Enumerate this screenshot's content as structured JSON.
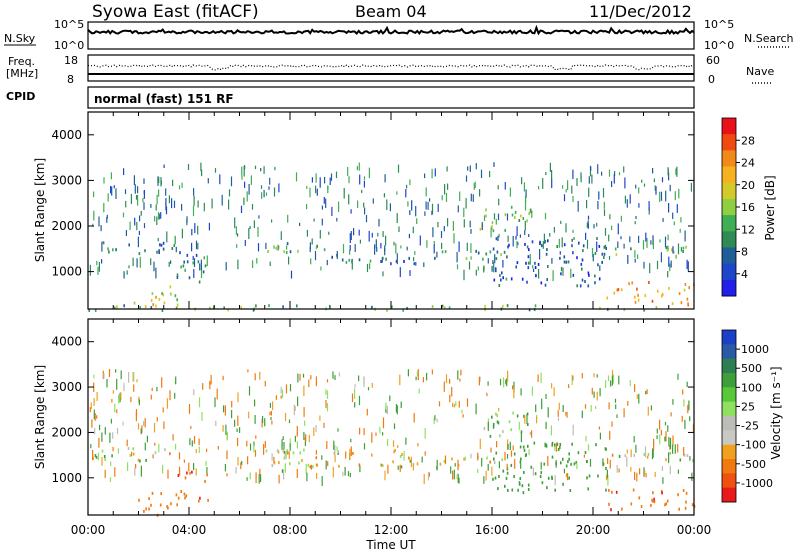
{
  "header": {
    "title": "Syowa East (fitACF)",
    "beam": "Beam 04",
    "date": "11/Dec/2012"
  },
  "summary_panels": {
    "nsky_label": "N.Sky",
    "nsky_ticks": [
      "10^5",
      "10^0"
    ],
    "nsearch_label": "N.Search",
    "nsearch_ticks": [
      "10^5",
      "10^0"
    ],
    "freq_label": "Freq.",
    "freq_unit": "[MHz]",
    "freq_ticks": [
      "18",
      "8"
    ],
    "nave_label": "Nave",
    "nave_ticks": [
      "60",
      "0"
    ],
    "cpid_label": "CPID",
    "cpid_value": "normal (fast) 151 RF"
  },
  "chart_data": [
    {
      "type": "heatmap",
      "name": "power",
      "ylabel": "Slant Range [km]",
      "xlabel": "",
      "x_range_hours": [
        0,
        24
      ],
      "ylim": [
        180,
        4500
      ],
      "y_ticks": [
        1000,
        2000,
        3000,
        4000
      ],
      "x_ticks": [
        "00:00",
        "04:00",
        "08:00",
        "12:00",
        "16:00",
        "20:00",
        "00:00"
      ],
      "colorbar": {
        "label": "Power [dB]",
        "ticks": [
          "28",
          "24",
          "20",
          "16",
          "12",
          "8",
          "4"
        ],
        "colors": [
          "#e8121b",
          "#f04a12",
          "#f28a1a",
          "#f5b21e",
          "#d3c92a",
          "#8fcf42",
          "#3fae55",
          "#2f8a55",
          "#205e9a",
          "#1d47c8",
          "#2020e8"
        ]
      },
      "echo_regions": [
        {
          "t0": 0.0,
          "t1": 3.4,
          "r0": 1400,
          "r1": 1700,
          "level": 8
        },
        {
          "t0": 1.8,
          "t1": 3.6,
          "r0": 200,
          "r1": 700,
          "level": 20
        },
        {
          "t0": 3.5,
          "t1": 4.8,
          "r0": 700,
          "r1": 1500,
          "level": 8
        },
        {
          "t0": 6.7,
          "t1": 10.0,
          "r0": 1450,
          "r1": 1650,
          "level": 12
        },
        {
          "t0": 8.5,
          "t1": 13.0,
          "r0": 1200,
          "r1": 1400,
          "level": 8
        },
        {
          "t0": 13.0,
          "t1": 16.5,
          "r0": 1300,
          "r1": 1500,
          "level": 10
        },
        {
          "t0": 15.5,
          "t1": 17.5,
          "r0": 1900,
          "r1": 2500,
          "level": 16
        },
        {
          "t0": 16.0,
          "t1": 20.5,
          "r0": 700,
          "r1": 1800,
          "level": 6
        },
        {
          "t0": 20.5,
          "t1": 24.0,
          "r0": 300,
          "r1": 800,
          "level": 22
        },
        {
          "t0": 20.0,
          "t1": 24.0,
          "r0": 1400,
          "r1": 1600,
          "level": 12
        },
        {
          "t0": 0.0,
          "t1": 24.0,
          "r0": 180,
          "r1": 300,
          "level": 14
        }
      ]
    },
    {
      "type": "heatmap",
      "name": "velocity",
      "ylabel": "Slant Range [km]",
      "xlabel": "Time UT",
      "x_range_hours": [
        0,
        24
      ],
      "ylim": [
        180,
        4500
      ],
      "y_ticks": [
        1000,
        2000,
        3000,
        4000
      ],
      "x_ticks": [
        "00:00",
        "04:00",
        "08:00",
        "12:00",
        "16:00",
        "20:00",
        "00:00"
      ],
      "colorbar": {
        "label": "Velocity [m s⁻¹]",
        "ticks": [
          "1000",
          "500",
          "100",
          "25",
          "-25",
          "-100",
          "-500",
          "-1000"
        ],
        "colors": [
          "#1c3fc8",
          "#2a5aa6",
          "#2f7d52",
          "#3e9e3a",
          "#58c83a",
          "#8fe060",
          "#bdbdb8",
          "#c9c9c4",
          "#f0a020",
          "#f07a10",
          "#f05010",
          "#e81a1a"
        ]
      },
      "echo_regions": [
        {
          "t0": 0.0,
          "t1": 3.4,
          "r0": 1400,
          "r1": 1700,
          "level": 25
        },
        {
          "t0": 1.8,
          "t1": 3.6,
          "r0": 200,
          "r1": 700,
          "level": -300
        },
        {
          "t0": 3.5,
          "t1": 4.8,
          "r0": 500,
          "r1": 1200,
          "level": -400
        },
        {
          "t0": 6.7,
          "t1": 13.0,
          "r0": 1250,
          "r1": 1650,
          "level": 0
        },
        {
          "t0": 13.0,
          "t1": 16.5,
          "r0": 1300,
          "r1": 1500,
          "level": 0
        },
        {
          "t0": 15.5,
          "t1": 17.5,
          "r0": 1900,
          "r1": 2500,
          "level": 150
        },
        {
          "t0": 16.0,
          "t1": 20.5,
          "r0": 700,
          "r1": 1800,
          "level": 300
        },
        {
          "t0": 20.5,
          "t1": 24.0,
          "r0": 300,
          "r1": 800,
          "level": -400
        },
        {
          "t0": 20.0,
          "t1": 24.0,
          "r0": 1400,
          "r1": 1600,
          "level": 0
        }
      ]
    }
  ]
}
